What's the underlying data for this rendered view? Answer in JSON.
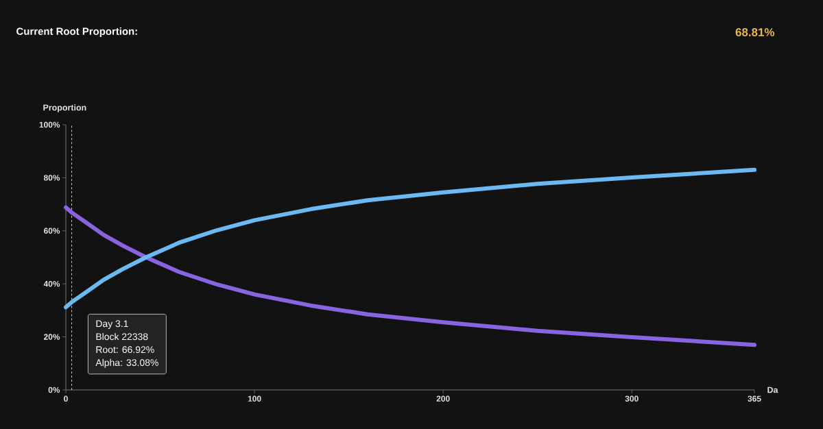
{
  "chart_data": {
    "type": "line",
    "title": "Current Root Proportion:",
    "annotations": [
      "68.81%",
      "Day 3.1",
      "Block 22338",
      "Root: 66.92%",
      "Alpha: 33.08%"
    ],
    "xlabel": "Da",
    "ylabel": "Proportion",
    "x": [
      0,
      3.1,
      10,
      20,
      30,
      42.5,
      60,
      80,
      100,
      130,
      160,
      200,
      250,
      300,
      365
    ],
    "series": [
      {
        "color": "#8a63e0",
        "values": [
          68.8,
          66.9,
          63.5,
          58.5,
          54.5,
          50,
          44.5,
          39.8,
          36,
          31.8,
          28.5,
          25.5,
          22.3,
          19.9,
          17.0
        ]
      },
      {
        "color": "#6cb8f0",
        "values": [
          31.2,
          33.1,
          36.5,
          41.5,
          45.5,
          50,
          55.5,
          60.2,
          64,
          68.2,
          71.5,
          74.5,
          77.7,
          80.1,
          83.0
        ]
      }
    ],
    "xlim": [
      0,
      365
    ],
    "ylim": [
      0,
      100
    ],
    "xticks": [
      0,
      100,
      200,
      300,
      365
    ],
    "yticks": [
      {
        "value": 0,
        "label": "0%"
      },
      {
        "value": 20,
        "label": "20%"
      },
      {
        "value": 40,
        "label": "40%"
      },
      {
        "value": 60,
        "label": "60%"
      },
      {
        "value": 80,
        "label": "80%"
      },
      {
        "value": 100,
        "label": "100%"
      }
    ],
    "ref_lines": [
      {
        "axis": "x",
        "value": 3.1,
        "color": "#cccccc",
        "line_style": "dashed"
      }
    ],
    "grid": false
  }
}
